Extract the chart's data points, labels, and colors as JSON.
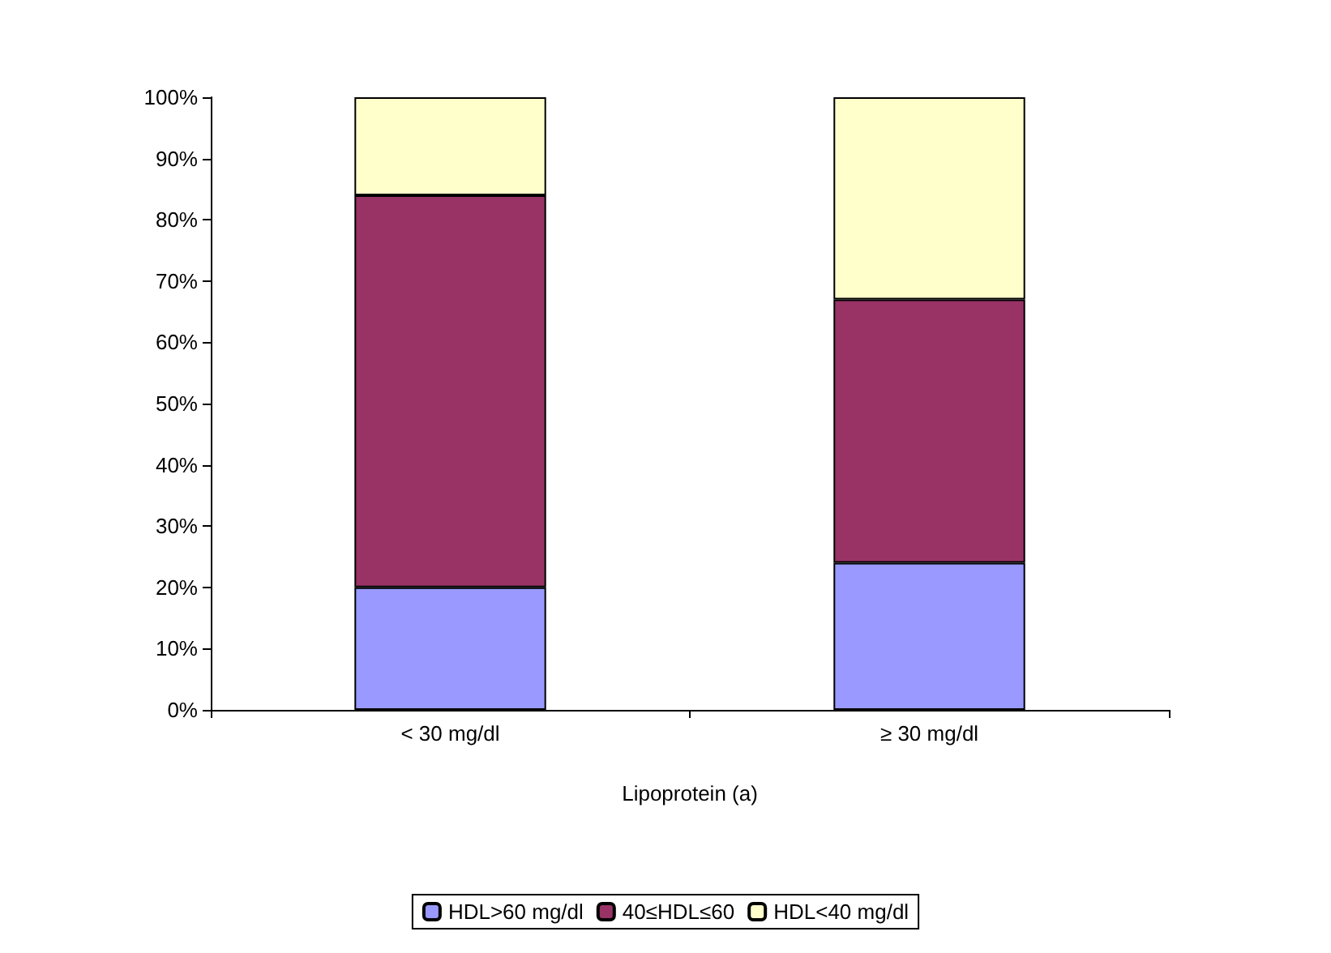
{
  "chart_data": {
    "type": "bar",
    "stacked": true,
    "categories": [
      "< 30 mg/dl",
      "≥ 30 mg/dl"
    ],
    "xlabel": "Lipoprotein (a)",
    "series": [
      {
        "name": "HDL>60 mg/dl",
        "color": "#9999ff",
        "values": [
          20,
          24
        ]
      },
      {
        "name": "40≤HDL≤60",
        "color": "#993366",
        "values": [
          64,
          43
        ]
      },
      {
        "name": "HDL<40 mg/dl",
        "color": "#ffffcc",
        "values": [
          16,
          33
        ]
      }
    ],
    "ylim": [
      0,
      100
    ],
    "yticks": [
      {
        "value": 0,
        "label": "0%"
      },
      {
        "value": 10,
        "label": "10%"
      },
      {
        "value": 20,
        "label": "20%"
      },
      {
        "value": 30,
        "label": "30%"
      },
      {
        "value": 40,
        "label": "40%"
      },
      {
        "value": 50,
        "label": "50%"
      },
      {
        "value": 60,
        "label": "60%"
      },
      {
        "value": 70,
        "label": "70%"
      },
      {
        "value": 80,
        "label": "80%"
      },
      {
        "value": 90,
        "label": "90%"
      },
      {
        "value": 100,
        "label": "100%"
      }
    ],
    "grid": false,
    "legend": "bottom"
  }
}
